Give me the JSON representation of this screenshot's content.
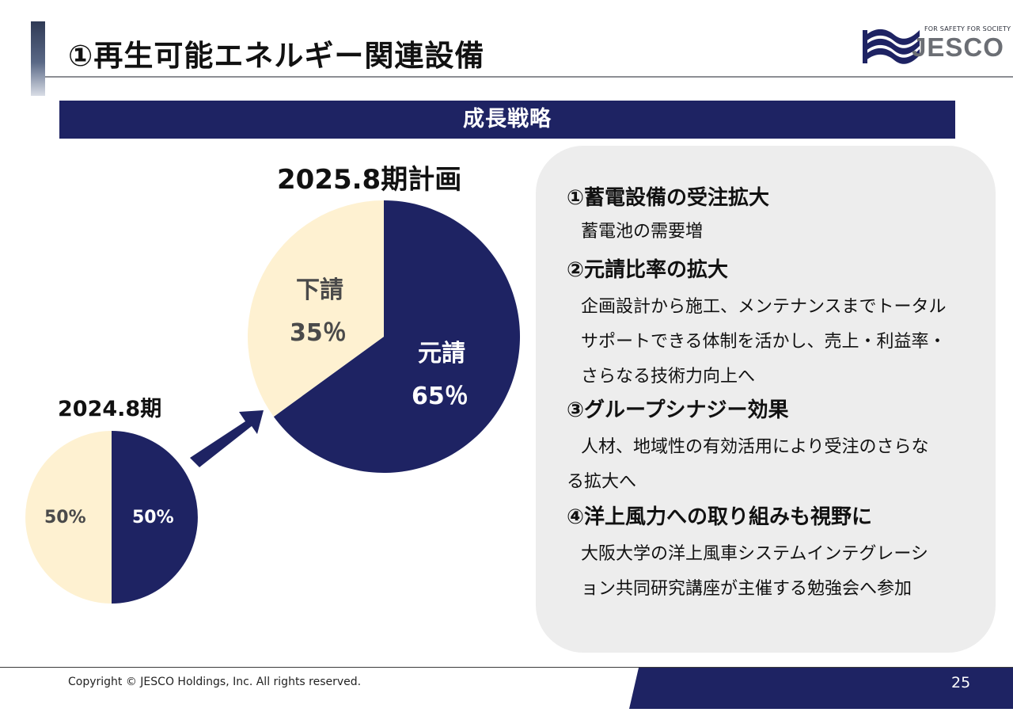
{
  "page": {
    "title": "①再生可能エネルギー関連設備",
    "section_title": "成長戦略",
    "footer_copyright": "Copyright © JESCO Holdings, Inc.  All rights reserved.",
    "page_number": "25"
  },
  "logo": {
    "tagline": "FOR SAFETY FOR SOCIETY",
    "name": "JESCO",
    "icon": "jesco-wave-logo-icon"
  },
  "colors": {
    "navy": "#1e2363",
    "cream": "#fef1d1",
    "box_gray": "#ededed"
  },
  "chart_data": [
    {
      "type": "pie",
      "title": "2024.8期",
      "series": [
        {
          "label": "",
          "value": 50,
          "display": "50%",
          "color": "#1e2363"
        },
        {
          "label": "",
          "value": 50,
          "display": "50%",
          "color": "#fef1d1"
        }
      ]
    },
    {
      "type": "pie",
      "title": "2025.8期計画",
      "series": [
        {
          "label": "元請",
          "value": 65,
          "display": "65％",
          "color": "#1e2363"
        },
        {
          "label": "下請",
          "value": 35,
          "display": "35％",
          "color": "#fef1d1"
        }
      ]
    }
  ],
  "strategy": {
    "items": [
      {
        "heading": "①蓄電設備の受注拡大",
        "lines": [
          "蓄電池の需要増"
        ]
      },
      {
        "heading": "②元請比率の拡大",
        "lines": [
          "企画設計から施工、メンテナンスまでトータル",
          "サポートできる体制を活かし、売上・利益率・",
          "さらなる技術力向上へ"
        ]
      },
      {
        "heading": "③グループシナジー効果",
        "lines": [
          "人材、地域性の有効活用により受注のさらな",
          "る拡大へ"
        ]
      },
      {
        "heading": "④洋上風力への取り組みも視野に",
        "lines": [
          "大阪大学の洋上風車システムインテグレーシ",
          "ョン共同研究講座が主催する勉強会へ参加"
        ]
      }
    ]
  }
}
